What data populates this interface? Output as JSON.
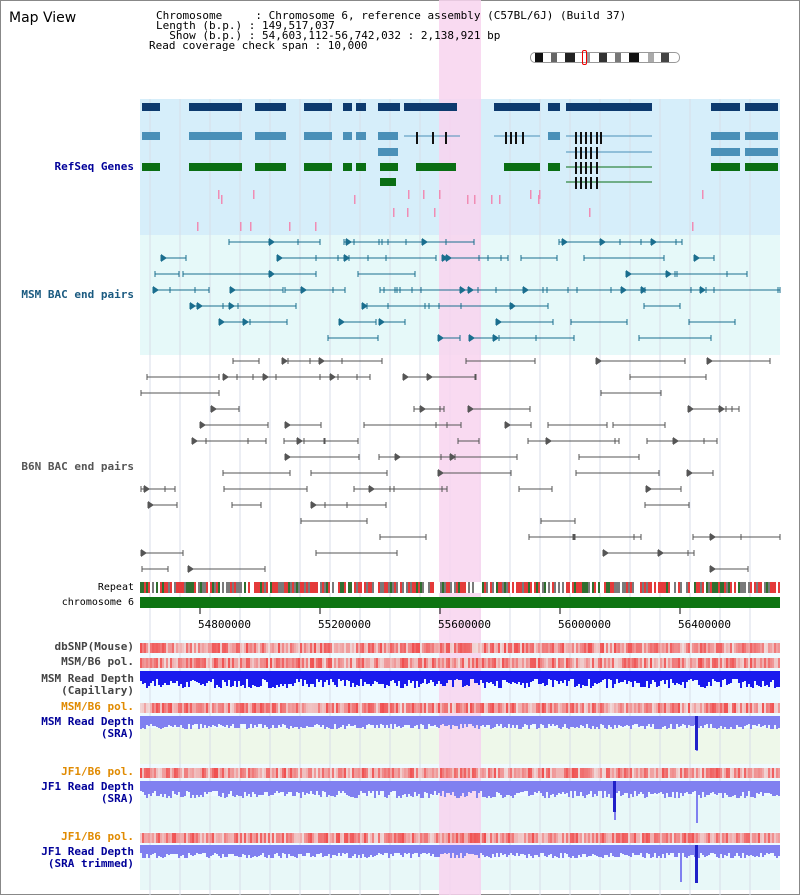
{
  "header": {
    "title": "Map View",
    "info_lines": [
      "Chromosome     : Chromosome 6, reference assembly (C57BL/6J) (Build 37)",
      "Length (b.p.) : 149,517,037",
      "  Show (b.p.) : 54,603,112-56,742,032 : 2,138,921 bp",
      "Read coverage check span : 10,000"
    ]
  },
  "tracks": {
    "refseq": "RefSeq Genes",
    "msm_bac": "MSM BAC end pairs",
    "b6n_bac": "B6N BAC end pairs",
    "repeat": "Repeat",
    "chromosome": "chromosome 6",
    "dbsnp": "dbSNP(Mouse)",
    "msm_b6_pol_1": "MSM/B6 pol.",
    "msm_depth_cap_1": "MSM Read Depth",
    "msm_depth_cap_2": "(Capillary)",
    "msm_b6_pol_2": "MSM/B6 pol.",
    "msm_depth_sra_1": "MSM Read Depth",
    "msm_depth_sra_2": "(SRA)",
    "jf1_b6_pol_1": "JF1/B6 pol.",
    "jf1_depth_sra_1": "JF1 Read Depth",
    "jf1_depth_sra_2": "(SRA)",
    "jf1_b6_pol_2": "JF1/B6 pol.",
    "jf1_depth_trim_1": "JF1 Read Depth",
    "jf1_depth_trim_2": "(SRA trimmed)"
  },
  "axis": {
    "ticks": [
      "54800000",
      "55200000",
      "55600000",
      "56000000",
      "56400000"
    ]
  },
  "colors": {
    "refseq_bg": "#d6eefa",
    "msm_bg": "#e6f9f9",
    "highlight": "#f8d4ef",
    "dark_gene": "#0d3a6e",
    "mid_gene": "#4a90b8",
    "green_gene": "#0a6e14",
    "chromosome_bar": "#0e7412",
    "depth_blue": "#1a1aee",
    "depth_light": "#8080f0",
    "pol_red": "#f03c3c",
    "orange_label": "#e08a00",
    "blue_label": "#000099"
  }
}
